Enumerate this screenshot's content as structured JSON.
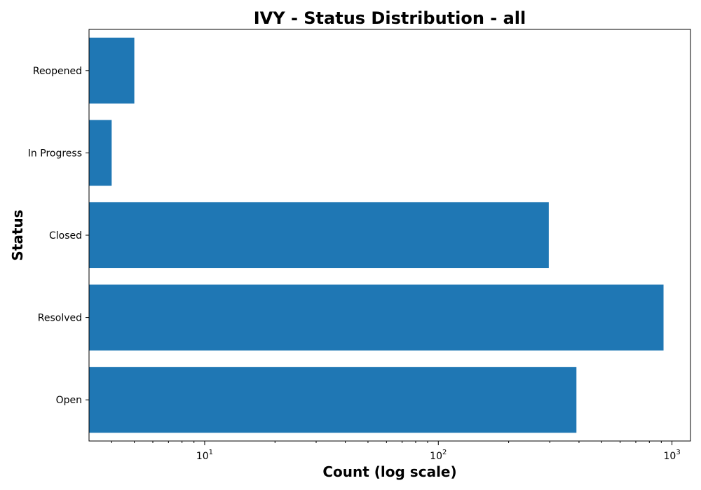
{
  "chart_data": {
    "type": "bar",
    "orientation": "horizontal",
    "title": "IVY - Status Distribution - all",
    "xlabel": "Count (log scale)",
    "ylabel": "Status",
    "xscale": "log",
    "xlim": [
      3.2,
      1200
    ],
    "x_ticks": [
      {
        "value": 10,
        "base": "10",
        "exp": "1"
      },
      {
        "value": 100,
        "base": "10",
        "exp": "2"
      },
      {
        "value": 1000,
        "base": "10",
        "exp": "3"
      }
    ],
    "categories": [
      "Open",
      "Resolved",
      "Closed",
      "In Progress",
      "Reopened"
    ],
    "values": [
      390,
      920,
      297,
      4,
      5
    ],
    "bar_color": "#1f77b4",
    "grid": false,
    "legend": "none"
  }
}
